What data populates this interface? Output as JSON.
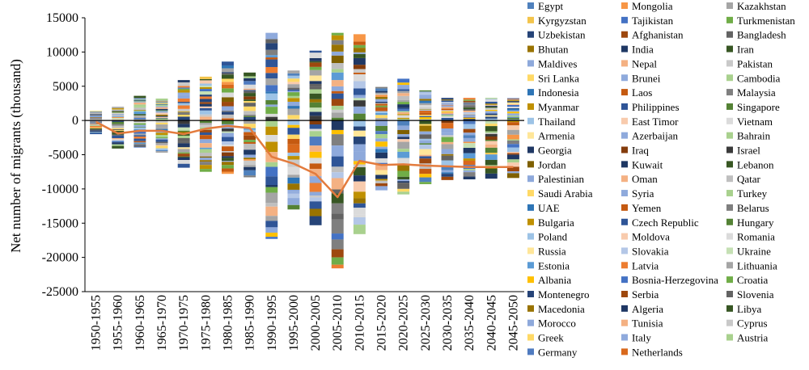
{
  "chart_data": {
    "type": "bar",
    "stacked": true,
    "title": "",
    "xlabel": "",
    "ylabel": "Net number of migrants (thousand)",
    "ylim": [
      -25000,
      15000
    ],
    "yticks": [
      15000,
      10000,
      5000,
      0,
      -5000,
      -10000,
      -15000,
      -20000,
      -25000
    ],
    "categories": [
      "1950-1955",
      "1955-1960",
      "1960-1965",
      "1965-1970",
      "1970-1975",
      "1975-1980",
      "1980-1985",
      "1985-1990",
      "1990-1995",
      "1995-2000",
      "2000-2005",
      "2005-2010",
      "2010-2015",
      "2015-2020",
      "2020-2025",
      "2025-2030",
      "2030-2035",
      "2035-2040",
      "2040-2045",
      "2045-2050"
    ],
    "positive_totals": [
      1400,
      2000,
      3600,
      3200,
      5900,
      6400,
      8600,
      7000,
      12800,
      7300,
      10200,
      12800,
      12600,
      4900,
      6100,
      4400,
      3300,
      3300,
      3300,
      3300
    ],
    "negative_totals": [
      -2000,
      -4100,
      -4000,
      -4700,
      -6900,
      -7500,
      -7800,
      -8300,
      -17300,
      -13000,
      -15300,
      -21600,
      -16600,
      -10200,
      -10800,
      -9300,
      -8700,
      -8600,
      -8500,
      -8400
    ],
    "series": [
      {
        "name": "Net total",
        "type": "line",
        "color": "#E37B3D",
        "values": [
          -200,
          -1900,
          -1500,
          -1500,
          -2000,
          -1200,
          -800,
          -1100,
          -5300,
          -6300,
          -7800,
          -11200,
          -5900,
          -6500,
          -6400,
          -6600,
          -6700,
          -6800,
          -6800,
          -6800
        ]
      }
    ],
    "legend": {
      "placement": "right",
      "entries": [
        {
          "name": "Egypt",
          "color": "#4F81BD"
        },
        {
          "name": "Mongolia",
          "color": "#F79646"
        },
        {
          "name": "Kazakhstan",
          "color": "#A5A5A5"
        },
        {
          "name": "Kyrgyzstan",
          "color": "#F3C44B"
        },
        {
          "name": "Tajikistan",
          "color": "#4472C4"
        },
        {
          "name": "Turkmenistan",
          "color": "#70AD47"
        },
        {
          "name": "Uzbekistan",
          "color": "#264478"
        },
        {
          "name": "Afghanistan",
          "color": "#9E480E"
        },
        {
          "name": "Bangladesh",
          "color": "#636363"
        },
        {
          "name": "Bhutan",
          "color": "#997300"
        },
        {
          "name": "India",
          "color": "#1F3864"
        },
        {
          "name": "Iran",
          "color": "#375623"
        },
        {
          "name": "Maldives",
          "color": "#8EA9DB"
        },
        {
          "name": "Nepal",
          "color": "#F4B183"
        },
        {
          "name": "Pakistan",
          "color": "#C9C9C9"
        },
        {
          "name": "Sri Lanka",
          "color": "#FFD966"
        },
        {
          "name": "Brunei",
          "color": "#8FAADC"
        },
        {
          "name": "Cambodia",
          "color": "#A9D18E"
        },
        {
          "name": "Indonesia",
          "color": "#2E75B6"
        },
        {
          "name": "Laos",
          "color": "#C55A11"
        },
        {
          "name": "Malaysia",
          "color": "#7F7F7F"
        },
        {
          "name": "Myanmar",
          "color": "#BF9000"
        },
        {
          "name": "Philippines",
          "color": "#2F5597"
        },
        {
          "name": "Singapore",
          "color": "#548235"
        },
        {
          "name": "Thailand",
          "color": "#9DC3E6"
        },
        {
          "name": "East Timor",
          "color": "#F8CBAD"
        },
        {
          "name": "Vietnam",
          "color": "#DBDBDB"
        },
        {
          "name": "Armenia",
          "color": "#FFE699"
        },
        {
          "name": "Azerbaijan",
          "color": "#8FAADC"
        },
        {
          "name": "Bahrain",
          "color": "#A9D18E"
        },
        {
          "name": "Georgia",
          "color": "#203864"
        },
        {
          "name": "Iraq",
          "color": "#843C0C"
        },
        {
          "name": "Israel",
          "color": "#3A3A3A"
        },
        {
          "name": "Jordan",
          "color": "#7F6000"
        },
        {
          "name": "Kuwait",
          "color": "#1F3864"
        },
        {
          "name": "Lebanon",
          "color": "#385723"
        },
        {
          "name": "Palestinian",
          "color": "#8EA9DB"
        },
        {
          "name": "Oman",
          "color": "#F4B183"
        },
        {
          "name": "Qatar",
          "color": "#BFBFBF"
        },
        {
          "name": "Saudi Arabia",
          "color": "#FFD966"
        },
        {
          "name": "Syria",
          "color": "#8FAADC"
        },
        {
          "name": "Turkey",
          "color": "#A9D18E"
        },
        {
          "name": "UAE",
          "color": "#2E75B6"
        },
        {
          "name": "Yemen",
          "color": "#C55A11"
        },
        {
          "name": "Belarus",
          "color": "#7F7F7F"
        },
        {
          "name": "Bulgaria",
          "color": "#BF9000"
        },
        {
          "name": "Czech Republic",
          "color": "#2F5597"
        },
        {
          "name": "Hungary",
          "color": "#548235"
        },
        {
          "name": "Poland",
          "color": "#9DC3E6"
        },
        {
          "name": "Moldova",
          "color": "#F8CBAD"
        },
        {
          "name": "Romania",
          "color": "#DBDBDB"
        },
        {
          "name": "Russia",
          "color": "#FFE699"
        },
        {
          "name": "Slovakia",
          "color": "#B4C7E7"
        },
        {
          "name": "Ukraine",
          "color": "#C5E0B4"
        },
        {
          "name": "Estonia",
          "color": "#5B9BD5"
        },
        {
          "name": "Latvia",
          "color": "#ED7D31"
        },
        {
          "name": "Lithuania",
          "color": "#A5A5A5"
        },
        {
          "name": "Albania",
          "color": "#FFC000"
        },
        {
          "name": "Bosnia-Herzegovina",
          "color": "#4472C4"
        },
        {
          "name": "Croatia",
          "color": "#70AD47"
        },
        {
          "name": "Montenegro",
          "color": "#264478"
        },
        {
          "name": "Serbia",
          "color": "#9E480E"
        },
        {
          "name": "Slovenia",
          "color": "#636363"
        },
        {
          "name": "Macedonia",
          "color": "#997300"
        },
        {
          "name": "Algeria",
          "color": "#1F3864"
        },
        {
          "name": "Libya",
          "color": "#375623"
        },
        {
          "name": "Morocco",
          "color": "#8EA9DB"
        },
        {
          "name": "Tunisia",
          "color": "#F4B183"
        },
        {
          "name": "Cyprus",
          "color": "#C9C9C9"
        },
        {
          "name": "Greek",
          "color": "#FFD966"
        },
        {
          "name": "Italy",
          "color": "#8FAADC"
        },
        {
          "name": "Austria",
          "color": "#A9D18E"
        },
        {
          "name": "Germany",
          "color": "#4F7BC0"
        },
        {
          "name": "Netherlands",
          "color": "#D9691C"
        }
      ]
    }
  }
}
